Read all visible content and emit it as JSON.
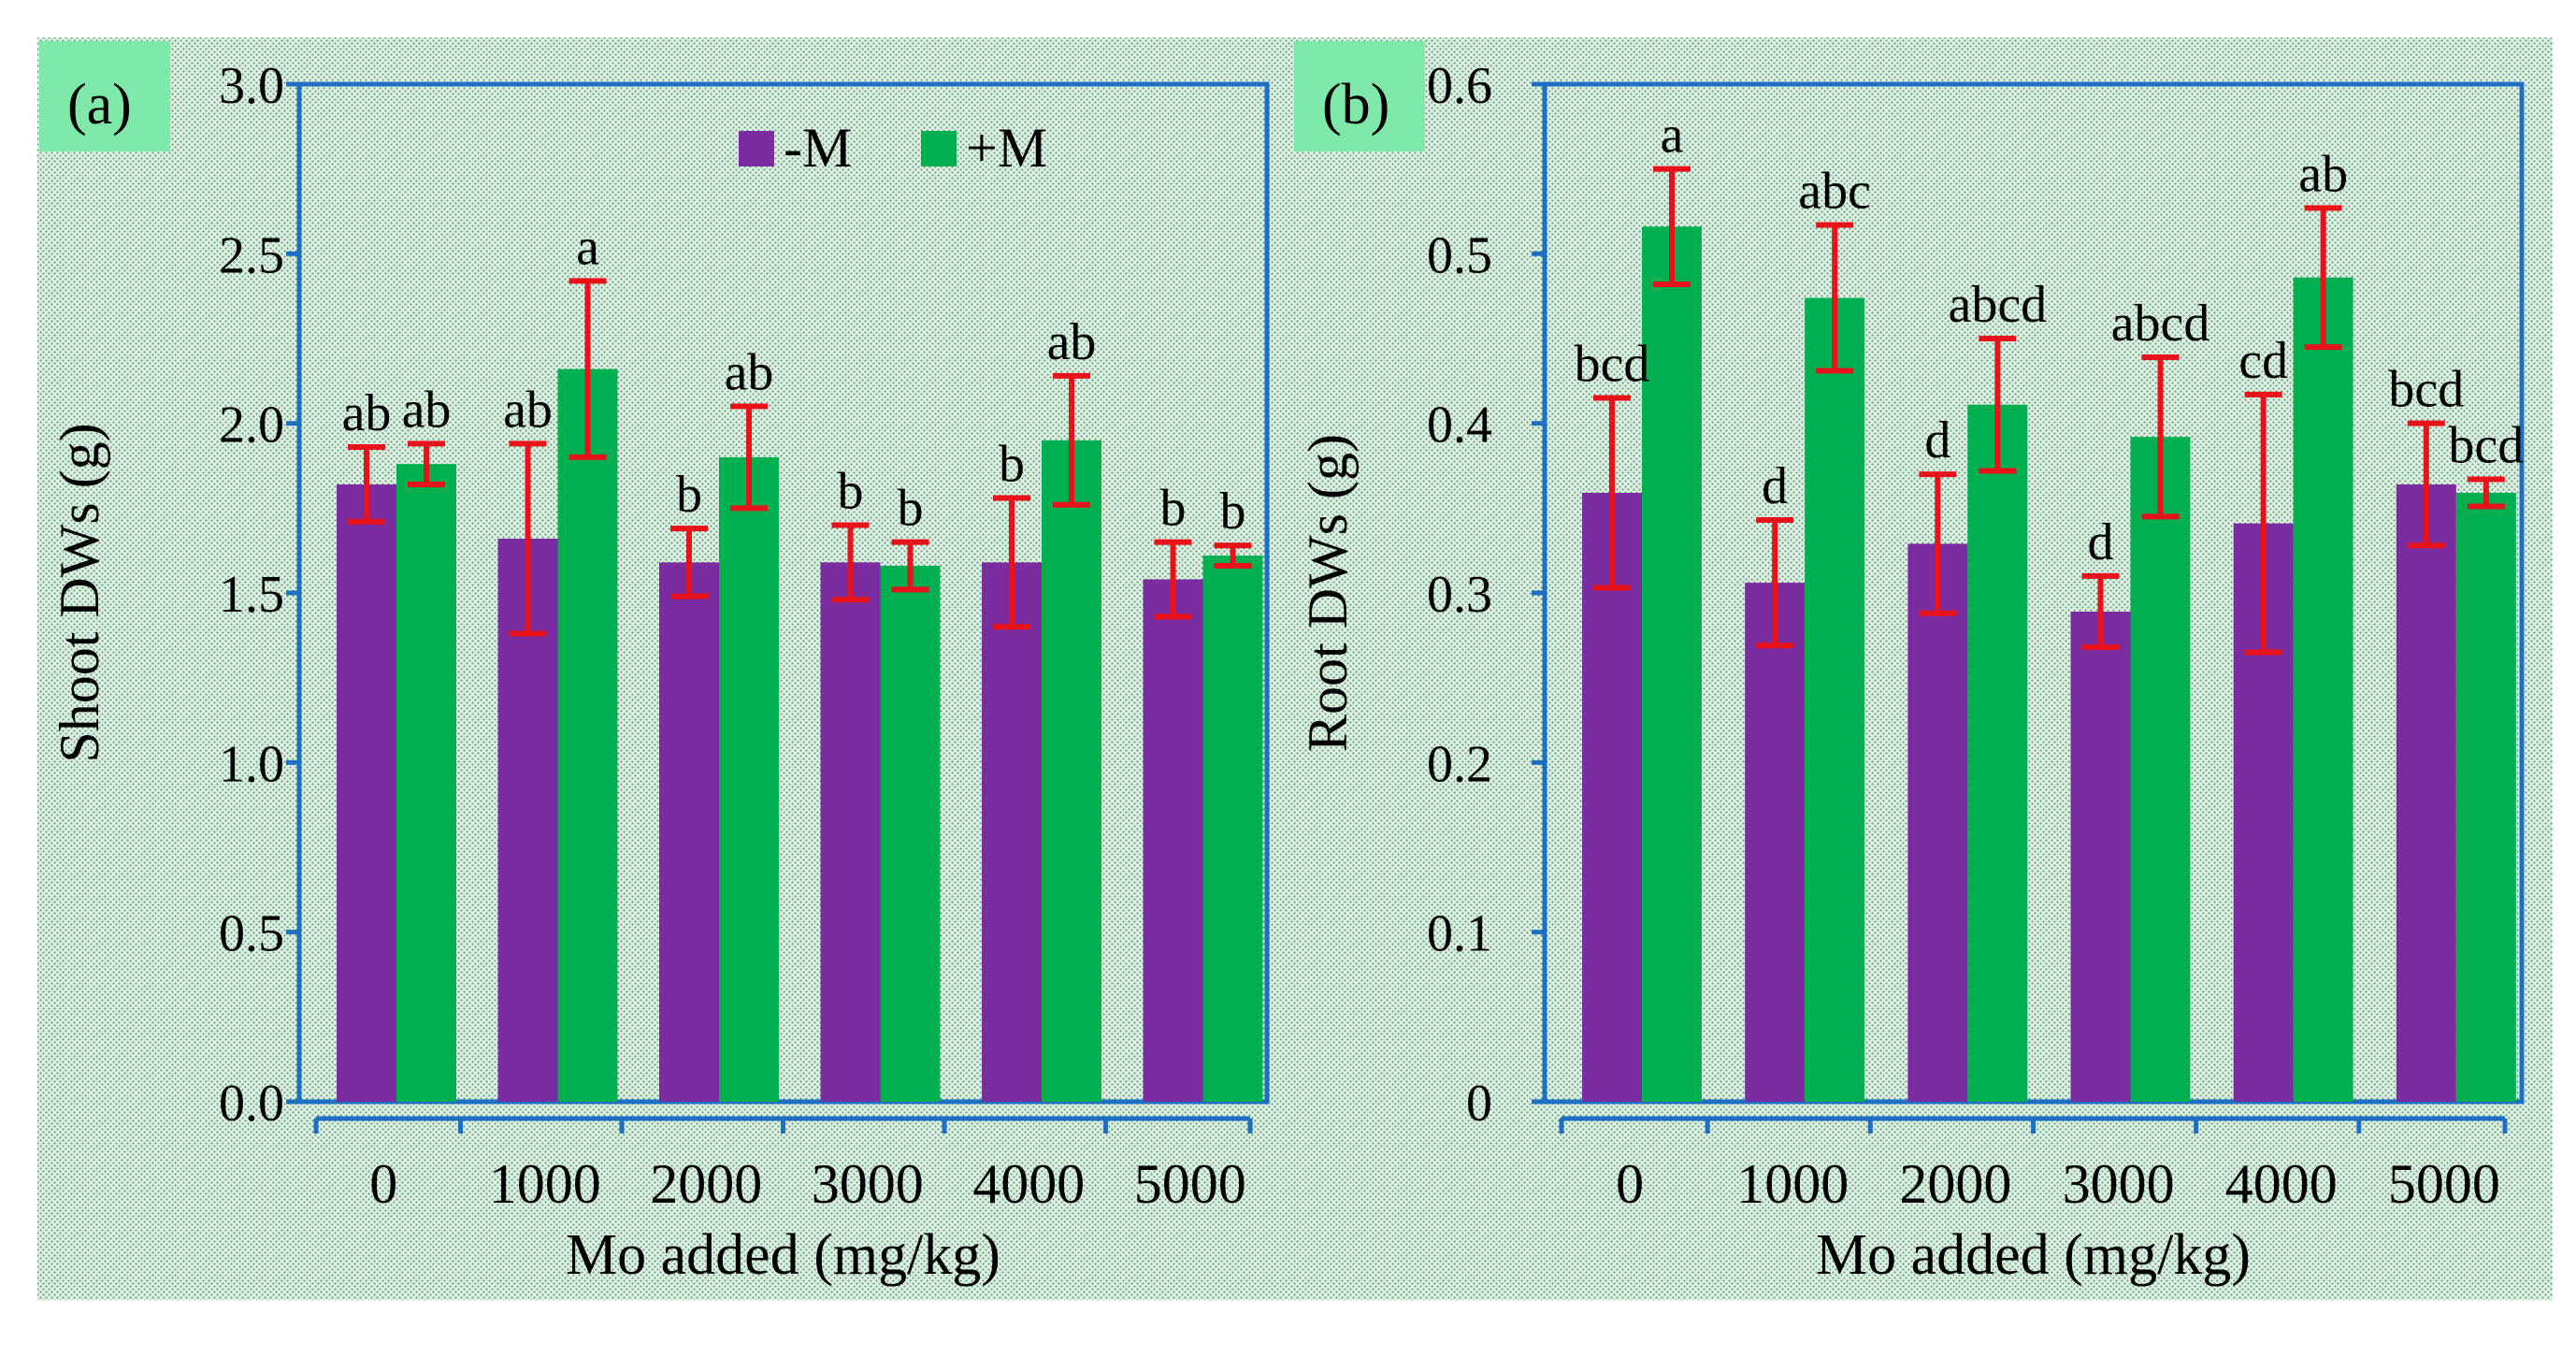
{
  "colors": {
    "background": "#e2efe6",
    "grid_dots": "#5fa777",
    "axis": "#1e6fc4",
    "minusM": "#7a2ca0",
    "plusM": "#00b050",
    "error_bar": "#e8121b",
    "panel_tag": "#7fe9aa"
  },
  "chart_data": [
    {
      "panel": "(a)",
      "type": "bar",
      "title": "",
      "xlabel": "Mo added (mg/kg)",
      "ylabel": "Shoot DWs (g)",
      "ylim": [
        0,
        3.0
      ],
      "yticks": [
        "0.0",
        "0.5",
        "1.0",
        "1.5",
        "2.0",
        "2.5",
        "3.0"
      ],
      "yticks_values": [
        0,
        0.5,
        1.0,
        1.5,
        2.0,
        2.5,
        3.0
      ],
      "categories": [
        "0",
        "1000",
        "2000",
        "3000",
        "4000",
        "5000"
      ],
      "legend": {
        "position": "top-center",
        "entries": [
          "-M",
          "+M"
        ]
      },
      "series": [
        {
          "name": "-M",
          "values": [
            1.82,
            1.66,
            1.59,
            1.59,
            1.59,
            1.54
          ],
          "errors": [
            0.11,
            0.28,
            0.1,
            0.11,
            0.19,
            0.11
          ],
          "labels": [
            "ab",
            "ab",
            "b",
            "b",
            "b",
            "b"
          ]
        },
        {
          "name": "+M",
          "values": [
            1.88,
            2.16,
            1.9,
            1.58,
            1.95,
            1.61
          ],
          "errors": [
            0.06,
            0.26,
            0.15,
            0.07,
            0.19,
            0.03
          ],
          "labels": [
            "ab",
            "a",
            "ab",
            "b",
            "ab",
            "b"
          ]
        }
      ]
    },
    {
      "panel": "(b)",
      "type": "bar",
      "title": "",
      "xlabel": "Mo added (mg/kg)",
      "ylabel": "Root DWs (g)",
      "ylim": [
        0,
        0.6
      ],
      "yticks": [
        "0",
        "0.1",
        "0.2",
        "0.3",
        "0.4",
        "0.5",
        "0.6"
      ],
      "yticks_values": [
        0,
        0.1,
        0.2,
        0.3,
        0.4,
        0.5,
        0.6
      ],
      "categories": [
        "0",
        "1000",
        "2000",
        "3000",
        "4000",
        "5000"
      ],
      "series": [
        {
          "name": "-M",
          "values": [
            0.359,
            0.306,
            0.329,
            0.289,
            0.341,
            0.364
          ],
          "errors": [
            0.056,
            0.037,
            0.041,
            0.021,
            0.076,
            0.036
          ],
          "labels": [
            "bcd",
            "d",
            "d",
            "d",
            "cd",
            "bcd"
          ]
        },
        {
          "name": "+M",
          "values": [
            0.516,
            0.474,
            0.411,
            0.392,
            0.486,
            0.359
          ],
          "errors": [
            0.034,
            0.043,
            0.039,
            0.047,
            0.041,
            0.008
          ],
          "labels": [
            "a",
            "abc",
            "abcd",
            "abcd",
            "ab",
            "bcd"
          ]
        }
      ]
    }
  ]
}
